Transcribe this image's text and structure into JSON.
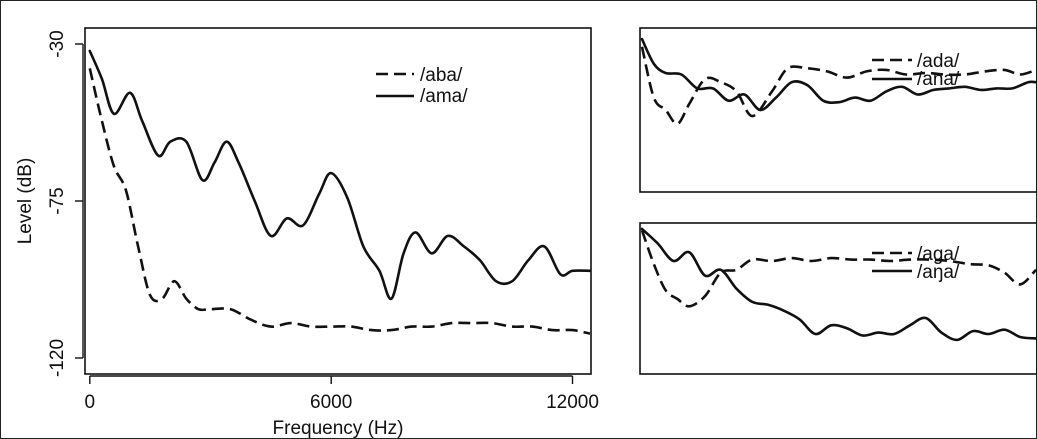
{
  "chart_data": [
    {
      "type": "line",
      "panel": "main",
      "xlabel": "Frequency (Hz)",
      "ylabel": "Level (dB)",
      "xlim": [
        -200,
        12500
      ],
      "ylim": [
        -120,
        -30
      ],
      "xticks": [
        0,
        6000,
        12000
      ],
      "xtick_labels": [
        "0",
        "6000",
        "12000"
      ],
      "yticks": [
        -30,
        -75,
        -120
      ],
      "ytick_labels": [
        "-30",
        "-75",
        "-120"
      ],
      "legend_position": "top-right",
      "series": [
        {
          "name": "/aba/",
          "style": "dashed",
          "x": [
            0,
            300,
            600,
            900,
            1200,
            1500,
            1800,
            2100,
            2400,
            2700,
            3000,
            3500,
            4000,
            4500,
            5000,
            5500,
            6000,
            6500,
            7000,
            7500,
            8000,
            8500,
            9000,
            9500,
            10000,
            10500,
            11000,
            11500,
            12000,
            12500
          ],
          "y": [
            -37,
            -52,
            -65,
            -72,
            -88,
            -102,
            -103,
            -98,
            -103,
            -106,
            -106,
            -106,
            -109,
            -111,
            -110,
            -111,
            -111,
            -111,
            -112,
            -112,
            -111,
            -111,
            -110,
            -110,
            -110,
            -111,
            -111,
            -112,
            -112,
            -113
          ]
        },
        {
          "name": "/ama/",
          "style": "solid",
          "x": [
            0,
            300,
            600,
            1000,
            1300,
            1700,
            2000,
            2400,
            2800,
            3100,
            3400,
            3700,
            4100,
            4500,
            4900,
            5300,
            5700,
            6000,
            6400,
            6800,
            7200,
            7500,
            7800,
            8100,
            8500,
            8900,
            9300,
            9700,
            10100,
            10500,
            10900,
            11300,
            11700,
            12000,
            12500
          ],
          "y": [
            -32,
            -40,
            -50,
            -44,
            -52,
            -62,
            -58,
            -58,
            -69,
            -64,
            -58,
            -64,
            -75,
            -85,
            -80,
            -82,
            -73,
            -67,
            -74,
            -88,
            -95,
            -103,
            -90,
            -84,
            -90,
            -85,
            -88,
            -92,
            -98,
            -98,
            -92,
            -88,
            -96,
            -95,
            -95
          ]
        }
      ]
    },
    {
      "type": "line",
      "panel": "top-right",
      "legend_position": "top-right",
      "series": [
        {
          "name": "/ada/",
          "style": "dashed",
          "x": [
            0,
            0.03,
            0.06,
            0.09,
            0.12,
            0.16,
            0.2,
            0.24,
            0.28,
            0.33,
            0.37,
            0.42,
            0.47,
            0.52,
            0.57,
            0.62,
            0.67,
            0.72,
            0.77,
            0.82,
            0.87,
            0.92,
            0.96,
            1.0
          ],
          "y": [
            0.93,
            0.6,
            0.52,
            0.43,
            0.56,
            0.72,
            0.7,
            0.64,
            0.48,
            0.64,
            0.79,
            0.79,
            0.77,
            0.73,
            0.77,
            0.78,
            0.75,
            0.76,
            0.75,
            0.75,
            0.77,
            0.78,
            0.75,
            0.78
          ]
        },
        {
          "name": "/ana/",
          "style": "solid",
          "x": [
            0,
            0.03,
            0.06,
            0.1,
            0.14,
            0.18,
            0.22,
            0.26,
            0.3,
            0.34,
            0.38,
            0.42,
            0.46,
            0.5,
            0.54,
            0.58,
            0.62,
            0.66,
            0.7,
            0.74,
            0.78,
            0.82,
            0.86,
            0.9,
            0.94,
            0.98,
            1.0
          ],
          "y": [
            0.98,
            0.82,
            0.76,
            0.75,
            0.66,
            0.66,
            0.58,
            0.62,
            0.52,
            0.6,
            0.7,
            0.68,
            0.58,
            0.57,
            0.6,
            0.58,
            0.64,
            0.67,
            0.62,
            0.65,
            0.66,
            0.67,
            0.65,
            0.66,
            0.66,
            0.7,
            0.7
          ]
        }
      ]
    },
    {
      "type": "line",
      "panel": "bottom-right",
      "legend_position": "top-right",
      "series": [
        {
          "name": "/aga/",
          "style": "dashed",
          "x": [
            0,
            0.03,
            0.06,
            0.09,
            0.12,
            0.16,
            0.2,
            0.24,
            0.28,
            0.33,
            0.38,
            0.43,
            0.48,
            0.53,
            0.58,
            0.63,
            0.68,
            0.73,
            0.78,
            0.83,
            0.88,
            0.92,
            0.96,
            1.0
          ],
          "y": [
            0.97,
            0.74,
            0.56,
            0.5,
            0.45,
            0.52,
            0.68,
            0.7,
            0.77,
            0.76,
            0.78,
            0.76,
            0.78,
            0.77,
            0.77,
            0.76,
            0.77,
            0.77,
            0.76,
            0.74,
            0.73,
            0.68,
            0.6,
            0.7
          ]
        },
        {
          "name": "/aŋa/",
          "style": "solid",
          "x": [
            0,
            0.04,
            0.08,
            0.12,
            0.16,
            0.2,
            0.24,
            0.28,
            0.32,
            0.36,
            0.4,
            0.44,
            0.48,
            0.52,
            0.56,
            0.6,
            0.64,
            0.68,
            0.72,
            0.76,
            0.8,
            0.84,
            0.88,
            0.92,
            0.96,
            1.0
          ],
          "y": [
            0.98,
            0.88,
            0.76,
            0.82,
            0.66,
            0.7,
            0.57,
            0.48,
            0.46,
            0.42,
            0.36,
            0.26,
            0.32,
            0.3,
            0.25,
            0.27,
            0.26,
            0.32,
            0.37,
            0.27,
            0.22,
            0.28,
            0.26,
            0.29,
            0.24,
            0.23
          ]
        }
      ]
    }
  ]
}
